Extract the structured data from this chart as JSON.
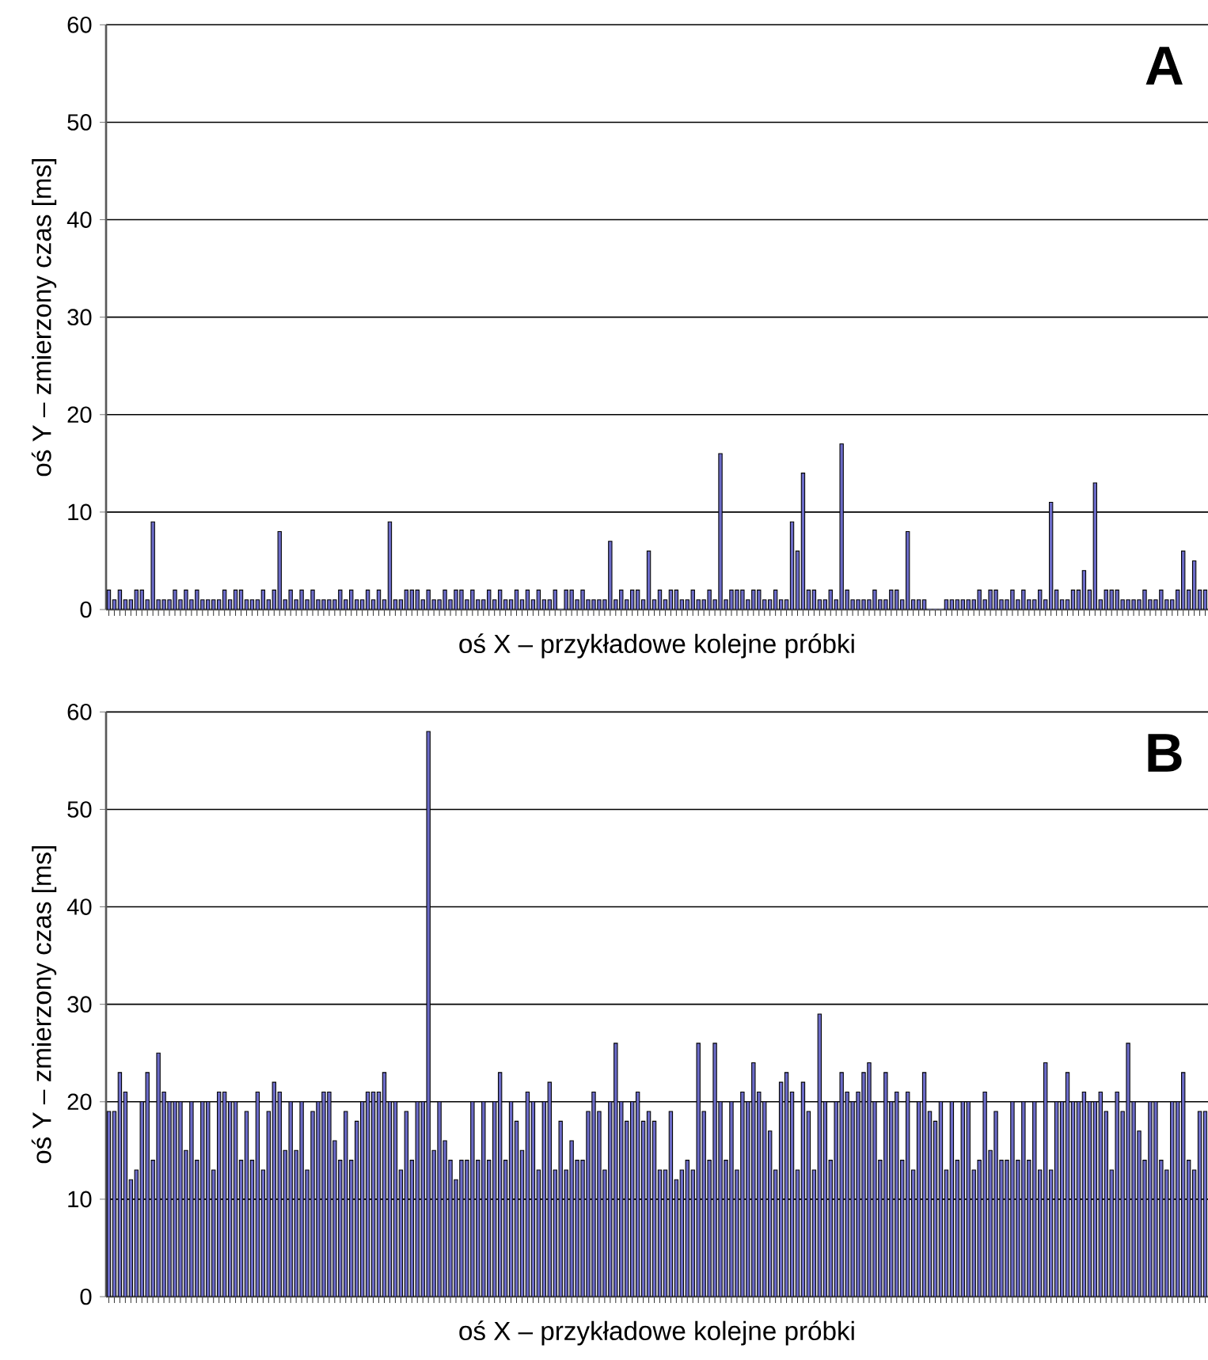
{
  "chart_data": [
    {
      "type": "bar",
      "xlabel": "oś X – przykładowe kolejne próbki",
      "ylabel": "oś Y – zmierzony czas [ms]",
      "annotations": [
        "A"
      ],
      "color": "#6b6bc8",
      "grid": "y",
      "ylim": [
        0,
        60
      ],
      "yticks": [
        0,
        10,
        20,
        30,
        40,
        50,
        60
      ],
      "categories": [
        null,
        null,
        null,
        null,
        null,
        null,
        null,
        null,
        null,
        null,
        null,
        null,
        null,
        null,
        null,
        null,
        null,
        null,
        null,
        null,
        null,
        null,
        null,
        null,
        null,
        null,
        null,
        null,
        null,
        null,
        null,
        null,
        null,
        null,
        null,
        null,
        null,
        null,
        null,
        null,
        null,
        null,
        null,
        null,
        null,
        null,
        null,
        null,
        null,
        null,
        null,
        null,
        null,
        null,
        null,
        null,
        null,
        null,
        null,
        null,
        null,
        null,
        null,
        null,
        null,
        null,
        null,
        null,
        null,
        null,
        null,
        null,
        null,
        null,
        null,
        null,
        null,
        null,
        null,
        null,
        null,
        null,
        null,
        null,
        null,
        null,
        null,
        null,
        null,
        null,
        null,
        null,
        null,
        null,
        null,
        null,
        null,
        null,
        null,
        null,
        null,
        null,
        null,
        null,
        null,
        null,
        null,
        null,
        null,
        null,
        null,
        null,
        null,
        null,
        null,
        null,
        null,
        null,
        null,
        null,
        null,
        null,
        null,
        null,
        null,
        null,
        null,
        null,
        null,
        null,
        null,
        null,
        null,
        null,
        null,
        null,
        null,
        null,
        null,
        null,
        null,
        null,
        null,
        null,
        null,
        null,
        null,
        null,
        null,
        null,
        null,
        null,
        null,
        null,
        null,
        null,
        null,
        null,
        null,
        null,
        null,
        null,
        null,
        null,
        null,
        null,
        null,
        null,
        null,
        null,
        null,
        null,
        null,
        null,
        null,
        null,
        null,
        null,
        null,
        null,
        null,
        null,
        null,
        null,
        null,
        null,
        null,
        null,
        null,
        null,
        null,
        null,
        null,
        null,
        null,
        null,
        null,
        null,
        null,
        null
      ],
      "values": [
        2,
        1,
        2,
        1,
        1,
        2,
        2,
        1,
        9,
        1,
        1,
        1,
        2,
        1,
        2,
        1,
        2,
        1,
        1,
        1,
        1,
        2,
        1,
        2,
        2,
        1,
        1,
        1,
        2,
        1,
        2,
        8,
        1,
        2,
        1,
        2,
        1,
        2,
        1,
        1,
        1,
        1,
        2,
        1,
        2,
        1,
        1,
        2,
        1,
        2,
        1,
        9,
        1,
        1,
        2,
        2,
        2,
        1,
        2,
        1,
        1,
        2,
        1,
        2,
        2,
        1,
        2,
        1,
        1,
        2,
        1,
        2,
        1,
        1,
        2,
        1,
        2,
        1,
        2,
        1,
        1,
        2,
        0,
        2,
        2,
        1,
        2,
        1,
        1,
        1,
        1,
        7,
        1,
        2,
        1,
        2,
        2,
        1,
        6,
        1,
        2,
        1,
        2,
        2,
        1,
        1,
        2,
        1,
        1,
        2,
        1,
        16,
        1,
        2,
        2,
        2,
        1,
        2,
        2,
        1,
        1,
        2,
        1,
        1,
        9,
        6,
        14,
        2,
        2,
        1,
        1,
        2,
        1,
        17,
        2,
        1,
        1,
        1,
        1,
        2,
        1,
        1,
        2,
        2,
        1,
        8,
        1,
        1,
        1,
        0,
        0,
        0,
        1,
        1,
        1,
        1,
        1,
        1,
        2,
        1,
        2,
        2,
        1,
        1,
        2,
        1,
        2,
        1,
        1,
        2,
        1,
        11,
        2,
        1,
        1,
        2,
        2,
        4,
        2,
        13,
        1,
        2,
        2,
        2,
        1,
        1,
        1,
        1,
        2,
        1,
        1,
        2,
        1,
        1,
        2,
        6,
        2,
        5,
        2,
        2
      ]
    },
    {
      "type": "bar",
      "xlabel": "oś X – przykładowe kolejne próbki",
      "ylabel": "oś Y – zmierzony czas [ms]",
      "annotations": [
        "B"
      ],
      "color": "#6b6bc8",
      "grid": "y",
      "ylim": [
        0,
        60
      ],
      "yticks": [
        0,
        10,
        20,
        30,
        40,
        50,
        60
      ],
      "categories": [
        null,
        null,
        null,
        null,
        null,
        null,
        null,
        null,
        null,
        null,
        null,
        null,
        null,
        null,
        null,
        null,
        null,
        null,
        null,
        null,
        null,
        null,
        null,
        null,
        null,
        null,
        null,
        null,
        null,
        null,
        null,
        null,
        null,
        null,
        null,
        null,
        null,
        null,
        null,
        null,
        null,
        null,
        null,
        null,
        null,
        null,
        null,
        null,
        null,
        null,
        null,
        null,
        null,
        null,
        null,
        null,
        null,
        null,
        null,
        null,
        null,
        null,
        null,
        null,
        null,
        null,
        null,
        null,
        null,
        null,
        null,
        null,
        null,
        null,
        null,
        null,
        null,
        null,
        null,
        null,
        null,
        null,
        null,
        null,
        null,
        null,
        null,
        null,
        null,
        null,
        null,
        null,
        null,
        null,
        null,
        null,
        null,
        null,
        null,
        null,
        null,
        null,
        null,
        null,
        null,
        null,
        null,
        null,
        null,
        null,
        null,
        null,
        null,
        null,
        null,
        null,
        null,
        null,
        null,
        null,
        null,
        null,
        null,
        null,
        null,
        null,
        null,
        null,
        null,
        null,
        null,
        null,
        null,
        null,
        null,
        null,
        null,
        null,
        null,
        null,
        null,
        null,
        null,
        null,
        null,
        null,
        null,
        null,
        null,
        null,
        null,
        null,
        null,
        null,
        null,
        null,
        null,
        null,
        null,
        null,
        null,
        null,
        null,
        null,
        null,
        null,
        null,
        null,
        null,
        null,
        null,
        null,
        null,
        null,
        null,
        null,
        null,
        null,
        null,
        null,
        null,
        null,
        null,
        null,
        null,
        null,
        null,
        null,
        null,
        null,
        null,
        null,
        null,
        null,
        null,
        null,
        null,
        null,
        null,
        null
      ],
      "values": [
        19,
        19,
        23,
        21,
        12,
        13,
        20,
        23,
        14,
        25,
        21,
        20,
        20,
        20,
        15,
        20,
        14,
        20,
        20,
        13,
        21,
        21,
        20,
        20,
        14,
        19,
        14,
        21,
        13,
        19,
        22,
        21,
        15,
        20,
        15,
        20,
        13,
        19,
        20,
        21,
        21,
        16,
        14,
        19,
        14,
        18,
        20,
        21,
        21,
        21,
        23,
        20,
        20,
        13,
        19,
        14,
        20,
        20,
        58,
        15,
        20,
        16,
        14,
        12,
        14,
        14,
        20,
        14,
        20,
        14,
        20,
        23,
        14,
        20,
        18,
        15,
        21,
        20,
        13,
        20,
        22,
        13,
        18,
        13,
        16,
        14,
        14,
        19,
        21,
        19,
        13,
        20,
        26,
        20,
        18,
        20,
        21,
        18,
        19,
        18,
        13,
        13,
        19,
        12,
        13,
        14,
        13,
        26,
        19,
        14,
        26,
        20,
        14,
        20,
        13,
        21,
        20,
        24,
        21,
        20,
        17,
        13,
        22,
        23,
        21,
        13,
        22,
        19,
        13,
        29,
        20,
        14,
        20,
        23,
        21,
        20,
        21,
        23,
        24,
        20,
        14,
        23,
        20,
        21,
        14,
        21,
        13,
        20,
        23,
        19,
        18,
        20,
        13,
        20,
        14,
        20,
        20,
        13,
        14,
        21,
        15,
        19,
        14,
        14,
        20,
        14,
        20,
        14,
        20,
        13,
        24,
        13,
        20,
        20,
        23,
        20,
        20,
        21,
        20,
        20,
        21,
        19,
        13,
        21,
        19,
        26,
        20,
        17,
        14,
        20,
        20,
        14,
        13,
        20,
        20,
        23,
        14,
        13,
        19,
        19
      ]
    }
  ]
}
